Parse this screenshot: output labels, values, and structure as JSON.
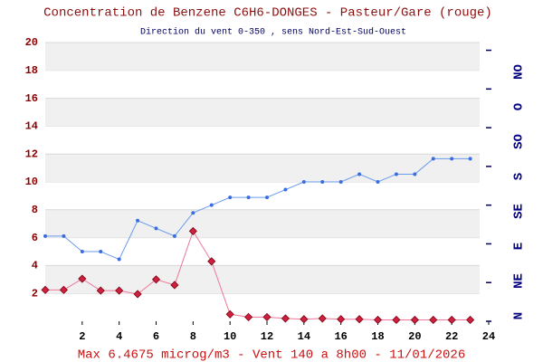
{
  "chart_data": {
    "type": "line",
    "title": "Concentration de Benzene C6H6-DONGES - Pasteur/Gare (rouge)",
    "subtitle": "Direction du vent 0-350 , sens Nord-Est-Sud-Ouest",
    "footer": "Max 6.4675 microg/m3 - Vent 140  a 8h00 - 11/01/2026",
    "x": [
      0,
      1,
      2,
      3,
      4,
      5,
      6,
      7,
      8,
      9,
      10,
      11,
      12,
      13,
      14,
      15,
      16,
      17,
      18,
      19,
      20,
      21,
      22,
      23
    ],
    "xlim": [
      0,
      24
    ],
    "xticks": [
      2,
      4,
      6,
      8,
      10,
      12,
      14,
      16,
      18,
      20,
      22,
      24
    ],
    "ylim": [
      0,
      20
    ],
    "yticks": [
      2,
      4,
      6,
      8,
      10,
      12,
      14,
      16,
      18,
      20
    ],
    "y2lim": [
      0,
      360
    ],
    "y2ticks": [
      0,
      50,
      100,
      150,
      200,
      250,
      300,
      350
    ],
    "y2_annotations": [
      {
        "value": 0,
        "label": "N"
      },
      {
        "value": 45,
        "label": "NE"
      },
      {
        "value": 90,
        "label": "E"
      },
      {
        "value": 135,
        "label": "SE"
      },
      {
        "value": 180,
        "label": "S"
      },
      {
        "value": 225,
        "label": "SO"
      },
      {
        "value": 270,
        "label": "O"
      },
      {
        "value": 315,
        "label": "NO"
      }
    ],
    "grid": true,
    "series": [
      {
        "name": "Benzene",
        "color": "#d02040",
        "values": [
          2.25,
          2.25,
          3.05,
          2.2,
          2.2,
          1.95,
          3.0,
          2.6,
          6.4675,
          4.3,
          0.5,
          0.3,
          0.3,
          0.2,
          0.15,
          0.2,
          0.15,
          0.15,
          0.1,
          0.1,
          0.1,
          0.1,
          0.1,
          0.1
        ]
      },
      {
        "name": "Vent",
        "color": "#3a6ee0",
        "axis": "y2",
        "values": [
          110,
          110,
          90,
          90,
          80,
          130,
          120,
          110,
          140,
          150,
          160,
          160,
          160,
          170,
          180,
          180,
          180,
          190,
          180,
          190,
          190,
          210,
          210,
          210
        ]
      }
    ]
  }
}
